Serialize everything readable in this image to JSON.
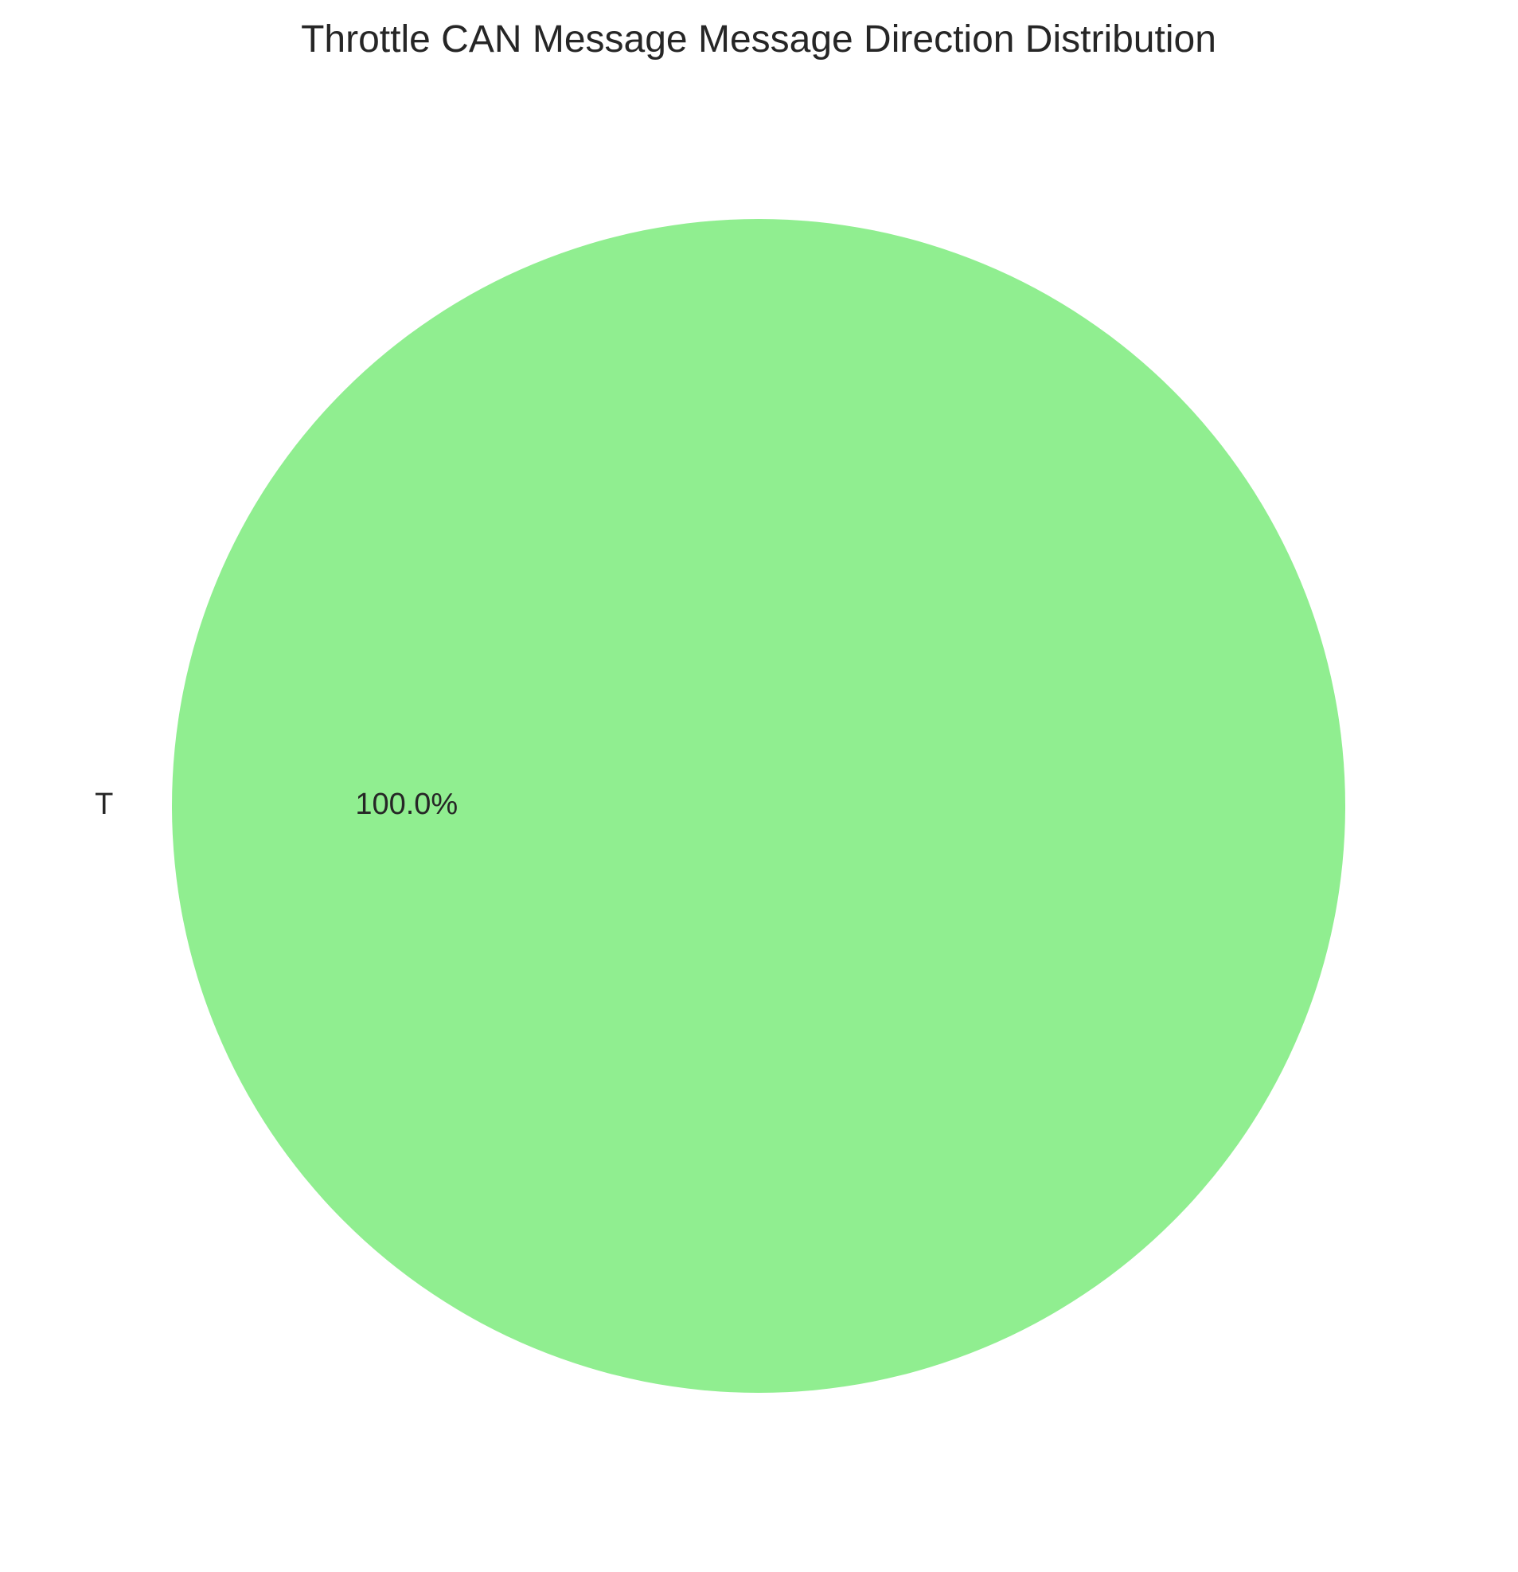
{
  "chart_data": {
    "type": "pie",
    "title": "Throttle CAN Message Message Direction Distribution",
    "slices": [
      {
        "label": "T",
        "value": 100.0,
        "percent_label": "100.0%",
        "color": "#90EE90"
      }
    ],
    "legend": "none",
    "start_angle": "left",
    "grid": false
  }
}
